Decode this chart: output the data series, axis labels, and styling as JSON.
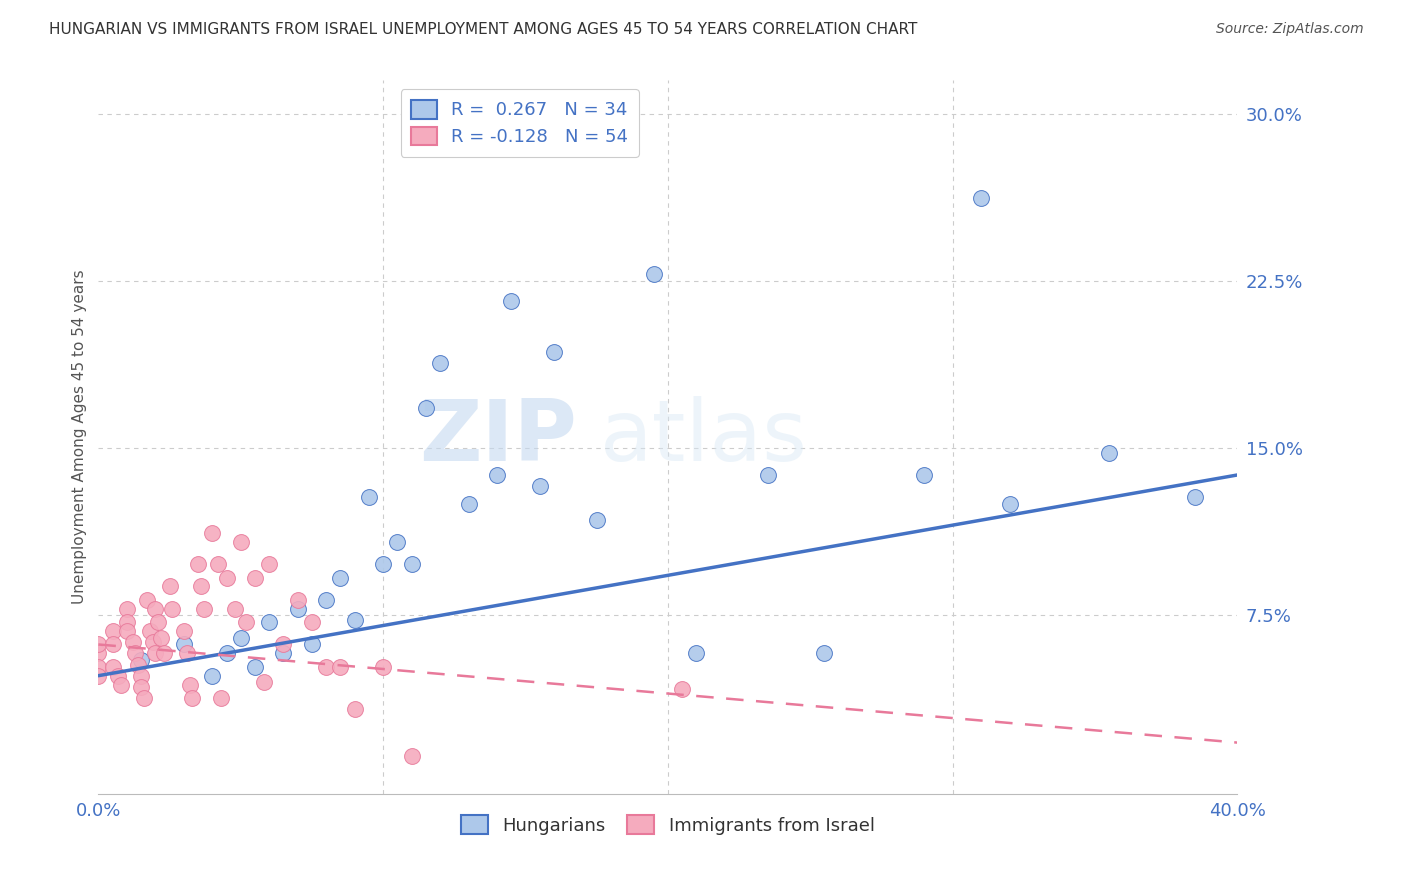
{
  "title": "HUNGARIAN VS IMMIGRANTS FROM ISRAEL UNEMPLOYMENT AMONG AGES 45 TO 54 YEARS CORRELATION CHART",
  "source": "Source: ZipAtlas.com",
  "ylabel": "Unemployment Among Ages 45 to 54 years",
  "xlim": [
    0.0,
    0.4
  ],
  "ylim": [
    -0.005,
    0.315
  ],
  "yticks_right": [
    0.0,
    0.075,
    0.15,
    0.225,
    0.3
  ],
  "yticklabels_right": [
    "",
    "7.5%",
    "15.0%",
    "22.5%",
    "30.0%"
  ],
  "title_color": "#333333",
  "hungarian_color": "#adc8ea",
  "israel_color": "#f5abbe",
  "hungarian_line_color": "#4472c4",
  "israel_line_color": "#e8799a",
  "legend_r_hungarian": "R =  0.267",
  "legend_n_hungarian": "N = 34",
  "legend_r_israel": "R = -0.128",
  "legend_n_israel": "N = 54",
  "watermark_zip": "ZIP",
  "watermark_atlas": "atlas",
  "hungarian_x": [
    0.015,
    0.03,
    0.04,
    0.045,
    0.05,
    0.055,
    0.06,
    0.065,
    0.07,
    0.075,
    0.08,
    0.085,
    0.09,
    0.095,
    0.1,
    0.105,
    0.11,
    0.115,
    0.12,
    0.13,
    0.14,
    0.145,
    0.155,
    0.16,
    0.175,
    0.195,
    0.21,
    0.235,
    0.255,
    0.29,
    0.31,
    0.32,
    0.355,
    0.385
  ],
  "hungarian_y": [
    0.055,
    0.062,
    0.048,
    0.058,
    0.065,
    0.052,
    0.072,
    0.058,
    0.078,
    0.062,
    0.082,
    0.092,
    0.073,
    0.128,
    0.098,
    0.108,
    0.098,
    0.168,
    0.188,
    0.125,
    0.138,
    0.216,
    0.133,
    0.193,
    0.118,
    0.228,
    0.058,
    0.138,
    0.058,
    0.138,
    0.262,
    0.125,
    0.148,
    0.128
  ],
  "israel_x": [
    0.0,
    0.0,
    0.0,
    0.0,
    0.005,
    0.005,
    0.005,
    0.007,
    0.008,
    0.01,
    0.01,
    0.01,
    0.012,
    0.013,
    0.014,
    0.015,
    0.015,
    0.016,
    0.017,
    0.018,
    0.019,
    0.02,
    0.02,
    0.021,
    0.022,
    0.023,
    0.025,
    0.026,
    0.03,
    0.031,
    0.032,
    0.033,
    0.035,
    0.036,
    0.037,
    0.04,
    0.042,
    0.043,
    0.045,
    0.048,
    0.05,
    0.052,
    0.055,
    0.058,
    0.06,
    0.065,
    0.07,
    0.075,
    0.08,
    0.085,
    0.09,
    0.1,
    0.11,
    0.205
  ],
  "israel_y": [
    0.058,
    0.062,
    0.052,
    0.048,
    0.068,
    0.062,
    0.052,
    0.048,
    0.044,
    0.078,
    0.072,
    0.068,
    0.063,
    0.058,
    0.053,
    0.048,
    0.043,
    0.038,
    0.082,
    0.068,
    0.063,
    0.058,
    0.078,
    0.072,
    0.065,
    0.058,
    0.088,
    0.078,
    0.068,
    0.058,
    0.044,
    0.038,
    0.098,
    0.088,
    0.078,
    0.112,
    0.098,
    0.038,
    0.092,
    0.078,
    0.108,
    0.072,
    0.092,
    0.045,
    0.098,
    0.062,
    0.082,
    0.072,
    0.052,
    0.052,
    0.033,
    0.052,
    0.012,
    0.042
  ],
  "h_line_x0": 0.0,
  "h_line_y0": 0.048,
  "h_line_x1": 0.4,
  "h_line_y1": 0.138,
  "i_line_x0": 0.0,
  "i_line_y0": 0.062,
  "i_line_x1": 0.4,
  "i_line_y1": 0.018
}
